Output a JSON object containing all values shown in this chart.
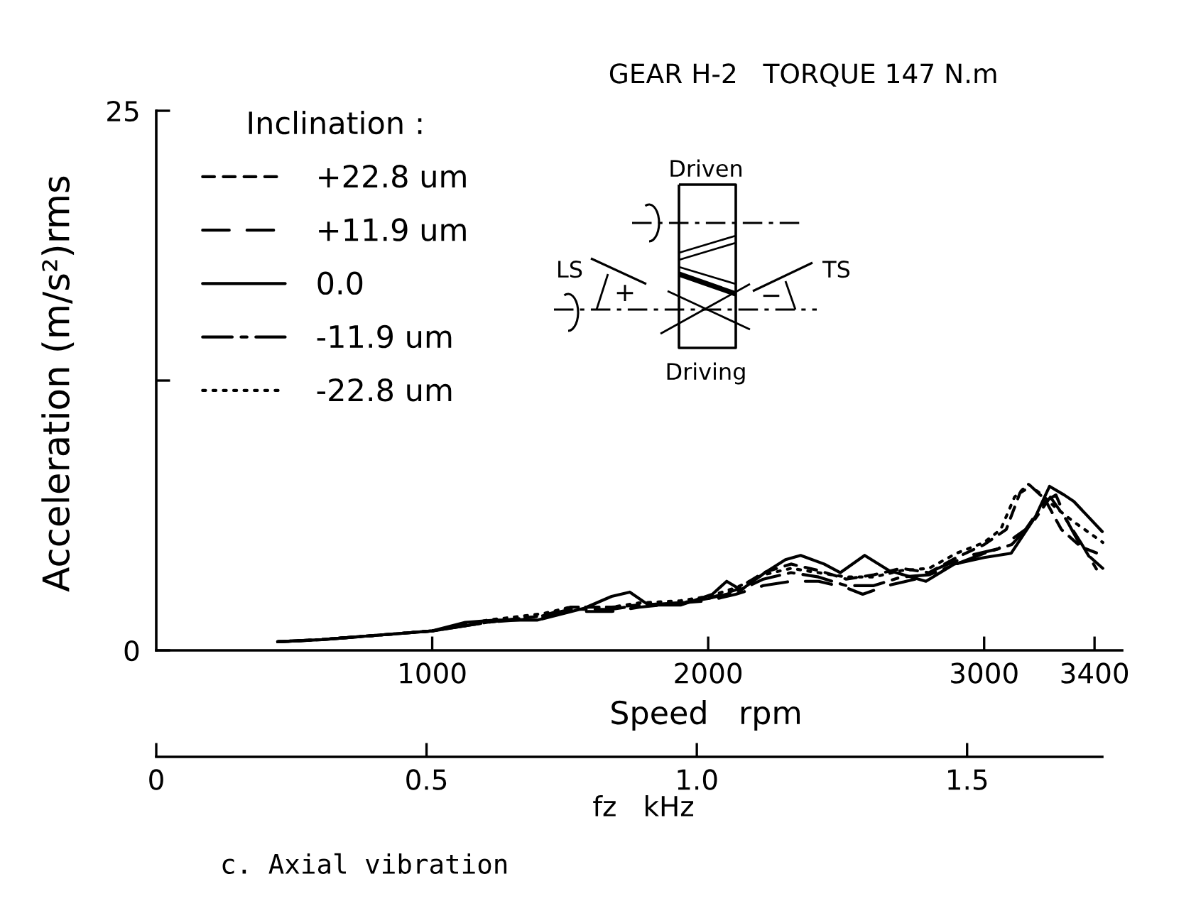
{
  "chart_data": {
    "type": "line",
    "title": "GEAR H-2   TORQUE 147 N.m",
    "xlabel": "Speed   rpm",
    "ylabel": "Acceleration (m/s²)rms",
    "x2label": "fz   kHz",
    "legend_title": "Inclination :",
    "legend": "top left",
    "xlim": [
      0,
      3500
    ],
    "xticks": [
      1000,
      2000,
      3000,
      3400
    ],
    "ylim": [
      0,
      25
    ],
    "yticks": [
      0,
      {
        "value": 12.5,
        "label": null
      },
      25
    ],
    "x2lim": [
      0,
      1.75
    ],
    "x2ticks": [
      0,
      0.5,
      {
        "value": 1.0,
        "label": "1.0"
      },
      1.5
    ],
    "annotations": [
      "Driven",
      "Driving",
      "LS",
      "TS",
      "+",
      "−",
      "c. Axial vibration"
    ],
    "series": [
      {
        "name": "+22.8 um",
        "color": "#000000",
        "line_style": "dashed",
        "x": [
          440,
          600,
          800,
          1000,
          1200,
          1400,
          1500,
          1650,
          1750,
          1900,
          2000,
          2100,
          2200,
          2300,
          2400,
          2500,
          2600,
          2700,
          2800,
          2900,
          3000,
          3080,
          3130,
          3170,
          3220,
          3280,
          3350,
          3430
        ],
        "values": [
          0.4,
          0.5,
          0.7,
          0.9,
          1.3,
          1.6,
          2.0,
          2.0,
          2.1,
          2.2,
          2.4,
          2.8,
          3.6,
          4.0,
          3.7,
          3.3,
          3.5,
          3.8,
          3.6,
          4.3,
          4.9,
          5.6,
          7.3,
          7.6,
          7.0,
          5.6,
          4.8,
          4.4
        ]
      },
      {
        "name": "+11.9 um",
        "color": "#000000",
        "line_style": "longdashed",
        "x": [
          440,
          600,
          800,
          1000,
          1200,
          1400,
          1500,
          1650,
          1750,
          1900,
          2000,
          2100,
          2200,
          2300,
          2400,
          2500,
          2560,
          2650,
          2750,
          2850,
          2950,
          3050,
          3150,
          3220,
          3260,
          3300,
          3360,
          3430
        ],
        "values": [
          0.4,
          0.5,
          0.7,
          0.9,
          1.3,
          1.5,
          1.8,
          1.8,
          2.0,
          2.2,
          2.3,
          2.6,
          3.0,
          3.2,
          3.2,
          2.9,
          2.6,
          3.0,
          3.3,
          3.9,
          4.4,
          4.7,
          5.6,
          6.9,
          7.2,
          6.0,
          4.6,
          3.8
        ]
      },
      {
        "name": "0.0",
        "color": "#000000",
        "line_style": "solid",
        "x": [
          440,
          600,
          800,
          1000,
          1120,
          1230,
          1380,
          1550,
          1650,
          1716,
          1784,
          1900,
          2015,
          2067,
          2119,
          2206,
          2280,
          2335,
          2420,
          2479,
          2567,
          2655,
          2789,
          2892,
          3000,
          3098,
          3186,
          3237,
          3290,
          3325,
          3428
        ],
        "values": [
          0.4,
          0.5,
          0.7,
          0.9,
          1.3,
          1.4,
          1.4,
          1.95,
          2.5,
          2.7,
          2.1,
          2.1,
          2.6,
          3.2,
          2.8,
          3.6,
          4.2,
          4.4,
          4.0,
          3.6,
          4.4,
          3.7,
          3.2,
          4.0,
          4.3,
          4.5,
          6.2,
          7.6,
          7.2,
          6.9,
          5.5
        ]
      },
      {
        "name": "-11.9 um",
        "color": "#000000",
        "line_style": "dashdot",
        "x": [
          440,
          600,
          800,
          1000,
          1200,
          1400,
          1500,
          1650,
          1750,
          1900,
          2000,
          2100,
          2200,
          2300,
          2400,
          2500,
          2600,
          2700,
          2800,
          2900,
          3000,
          3100,
          3180,
          3240,
          3290,
          3350,
          3410
        ],
        "values": [
          0.4,
          0.5,
          0.7,
          0.9,
          1.3,
          1.6,
          1.9,
          1.9,
          2.1,
          2.2,
          2.4,
          2.7,
          3.3,
          3.6,
          3.4,
          3.0,
          3.0,
          3.4,
          3.5,
          4.0,
          4.5,
          4.9,
          6.0,
          7.1,
          6.2,
          5.0,
          3.7
        ]
      },
      {
        "name": "-22.8 um",
        "color": "#000000",
        "line_style": "dotted",
        "x": [
          440,
          600,
          800,
          1000,
          1200,
          1400,
          1500,
          1650,
          1750,
          1900,
          2000,
          2100,
          2200,
          2300,
          2400,
          2500,
          2600,
          2700,
          2800,
          2900,
          3000,
          3060,
          3110,
          3160,
          3210,
          3260,
          3320,
          3430
        ],
        "values": [
          0.4,
          0.5,
          0.7,
          0.9,
          1.4,
          1.7,
          2.0,
          2.0,
          2.2,
          2.3,
          2.5,
          2.9,
          3.5,
          3.8,
          3.6,
          3.4,
          3.4,
          3.7,
          3.8,
          4.5,
          5.0,
          5.6,
          7.1,
          7.7,
          7.2,
          6.6,
          6.0,
          5.0
        ]
      }
    ]
  }
}
